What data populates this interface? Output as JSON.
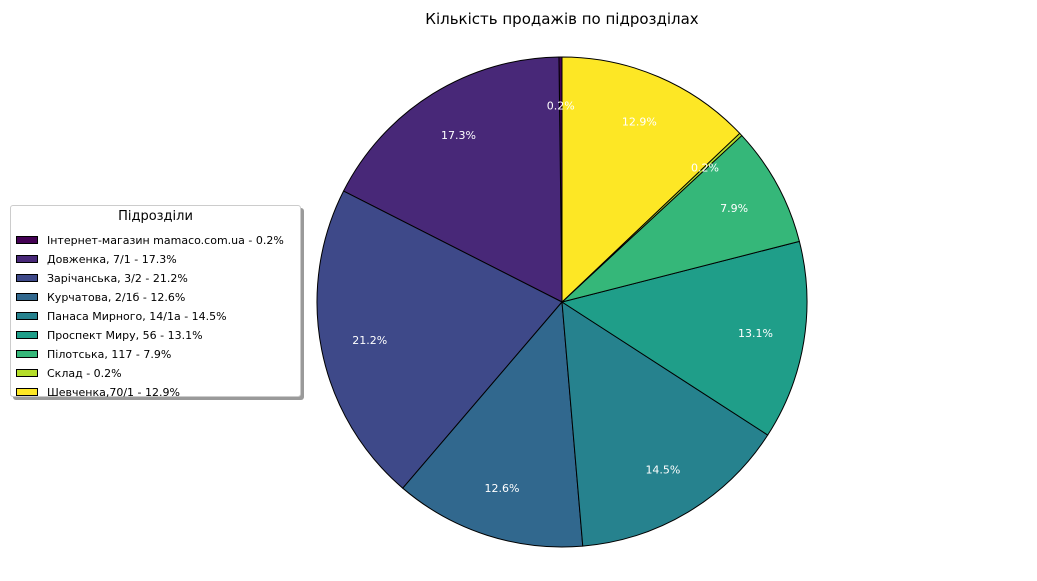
{
  "chart_data": {
    "type": "pie",
    "title": "Кількість продажів по підрозділах",
    "start_angle_deg": 90,
    "direction": "counterclockwise",
    "legend": {
      "title": "Підрозділи",
      "position": "left"
    },
    "slices": [
      {
        "label": "Інтернет-магазин mamaco.com.ua",
        "value": 0.2,
        "pct_label": "0.2%",
        "legend_text": "Інтернет-магазин mamaco.com.ua - 0.2%",
        "color": "#440154"
      },
      {
        "label": "Довженка, 7/1",
        "value": 17.3,
        "pct_label": "17.3%",
        "legend_text": "Довженка, 7/1 - 17.3%",
        "color": "#482878"
      },
      {
        "label": "Зарічанська, 3/2",
        "value": 21.2,
        "pct_label": "21.2%",
        "legend_text": "Зарічанська, 3/2 - 21.2%",
        "color": "#3e4989"
      },
      {
        "label": "Курчатова, 2/1б",
        "value": 12.6,
        "pct_label": "12.6%",
        "legend_text": "Курчатова, 2/1б - 12.6%",
        "color": "#31688e"
      },
      {
        "label": "Панаса Мирного, 14/1а",
        "value": 14.5,
        "pct_label": "14.5%",
        "legend_text": "Панаса Мирного, 14/1а - 14.5%",
        "color": "#26828e"
      },
      {
        "label": "Проспект Миру, 56",
        "value": 13.1,
        "pct_label": "13.1%",
        "legend_text": "Проспект Миру, 56 - 13.1%",
        "color": "#1f9e89"
      },
      {
        "label": "Пілотська, 117",
        "value": 7.9,
        "pct_label": "7.9%",
        "legend_text": "Пілотська, 117 - 7.9%",
        "color": "#35b779"
      },
      {
        "label": "Склад",
        "value": 0.2,
        "pct_label": "0.2%",
        "legend_text": "Склад - 0.2%",
        "color": "#b5de2b"
      },
      {
        "label": "Шевченка,70/1",
        "value": 12.9,
        "pct_label": "12.9%",
        "legend_text": "Шевченка,70/1 - 12.9%",
        "color": "#fde725"
      }
    ]
  }
}
